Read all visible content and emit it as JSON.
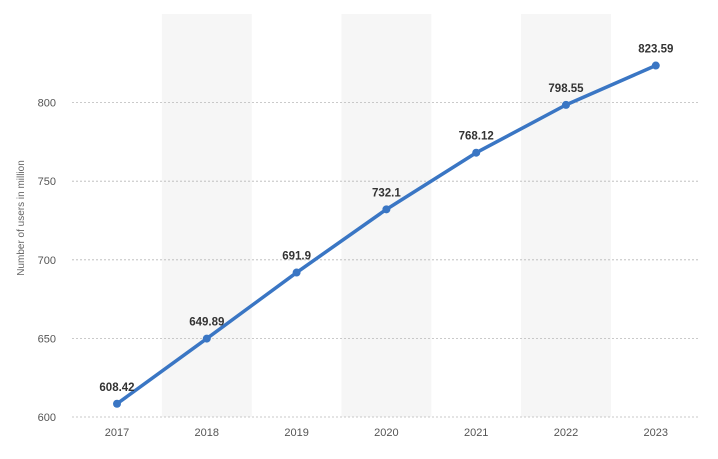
{
  "chart_data": {
    "type": "line",
    "title": "",
    "xlabel": "",
    "ylabel": "Number of users in million",
    "categories": [
      "2017",
      "2018",
      "2019",
      "2020",
      "2021",
      "2022",
      "2023"
    ],
    "series": [
      {
        "values": [
          608.42,
          649.89,
          691.9,
          732.1,
          768.12,
          798.55,
          823.59
        ],
        "labels": [
          "608.42",
          "649.89",
          "691.9",
          "732.1",
          "768.12",
          "798.55",
          "823.59"
        ]
      }
    ],
    "ylim": [
      600,
      850
    ],
    "yticks": [
      600,
      650,
      700,
      750,
      800
    ],
    "ytick_labels": [
      "600",
      "650",
      "700",
      "750",
      "800"
    ],
    "grid": true,
    "legend": "none",
    "colors": {
      "line": "#3a76c4",
      "band": "#f6f6f6",
      "grid": "#b8b8b8"
    }
  }
}
